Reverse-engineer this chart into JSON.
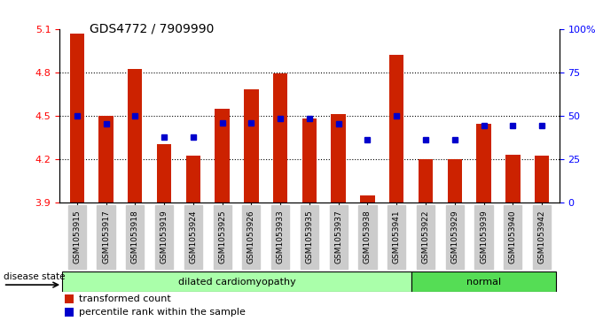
{
  "title": "GDS4772 / 7909990",
  "samples": [
    "GSM1053915",
    "GSM1053917",
    "GSM1053918",
    "GSM1053919",
    "GSM1053924",
    "GSM1053925",
    "GSM1053926",
    "GSM1053933",
    "GSM1053935",
    "GSM1053937",
    "GSM1053938",
    "GSM1053941",
    "GSM1053922",
    "GSM1053929",
    "GSM1053939",
    "GSM1053940",
    "GSM1053942"
  ],
  "bar_values": [
    5.07,
    4.5,
    4.82,
    4.3,
    4.22,
    4.55,
    4.68,
    4.79,
    4.48,
    4.51,
    3.95,
    4.92,
    4.2,
    4.2,
    4.44,
    4.23,
    4.22
  ],
  "dot_values": [
    4.5,
    4.44,
    4.5,
    4.35,
    4.35,
    4.45,
    4.45,
    4.48,
    4.48,
    4.44,
    4.33,
    4.5,
    4.33,
    4.33,
    4.43,
    4.43,
    4.43
  ],
  "ylim_left": [
    3.9,
    5.1
  ],
  "ylim_right": [
    0,
    100
  ],
  "yticks_left": [
    3.9,
    4.2,
    4.5,
    4.8,
    5.1
  ],
  "yticks_right": [
    0,
    25,
    50,
    75,
    100
  ],
  "ytick_right_labels": [
    "0",
    "25",
    "50",
    "75",
    "100%"
  ],
  "grid_lines": [
    4.2,
    4.5,
    4.8
  ],
  "bar_color": "#CC2200",
  "dot_color": "#0000CC",
  "xtick_bg_color": "#CCCCCC",
  "disease_groups": [
    {
      "label": "dilated cardiomyopathy",
      "start": 0,
      "end": 12,
      "color": "#AAFFAA"
    },
    {
      "label": "normal",
      "start": 12,
      "end": 17,
      "color": "#55DD55"
    }
  ],
  "legend_items": [
    {
      "label": "transformed count",
      "color": "#CC2200"
    },
    {
      "label": "percentile rank within the sample",
      "color": "#0000CC"
    }
  ],
  "disease_state_label": "disease state"
}
